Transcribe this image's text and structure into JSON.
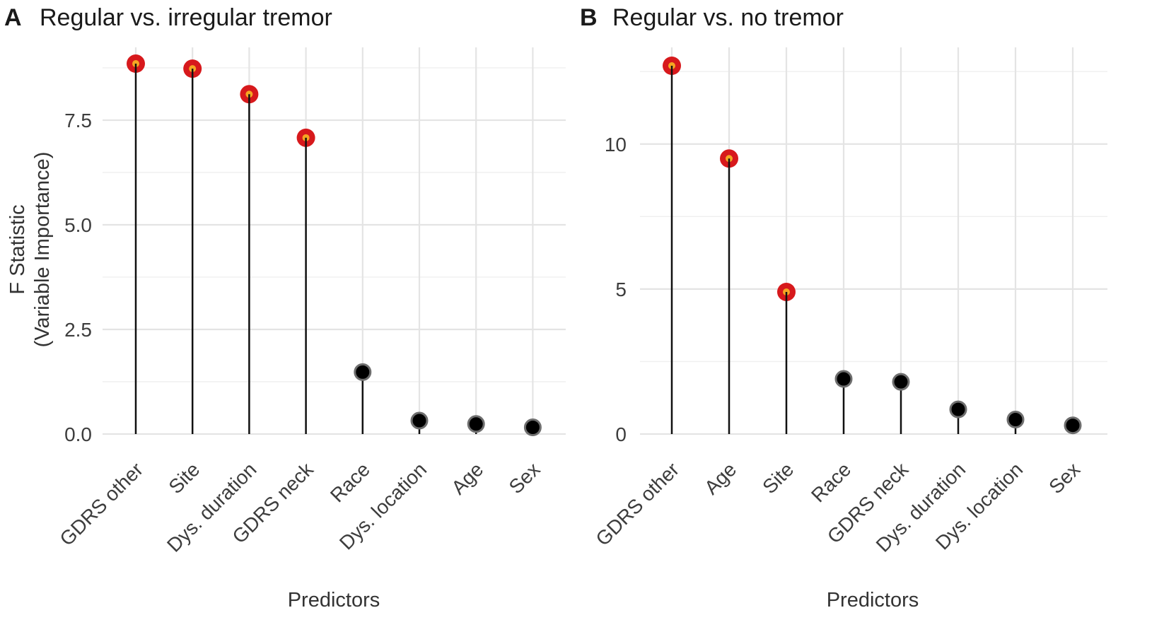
{
  "chart_data": [
    {
      "type": "lollipop",
      "panel_label": "A",
      "title": "Regular vs. irregular tremor",
      "xlabel": "Predictors",
      "ylabel_line1": "F Statistic",
      "ylabel_line2": "(Variable Importance)",
      "ylim": [
        0,
        8.8
      ],
      "yticks": [
        0,
        2.5,
        5,
        7.5
      ],
      "ytick_labels": [
        "0.0",
        "2.5",
        "5.0",
        "7.5"
      ],
      "categories": [
        "GDRS other",
        "Site",
        "Dys. duration",
        "GDRS neck",
        "Race",
        "Dys. location",
        "Age",
        "Sex"
      ],
      "values": [
        8.85,
        8.73,
        8.12,
        7.08,
        1.48,
        0.32,
        0.24,
        0.16
      ],
      "significant": [
        true,
        true,
        true,
        true,
        false,
        false,
        false,
        false
      ]
    },
    {
      "type": "lollipop",
      "panel_label": "B",
      "title": "Regular vs. no tremor",
      "xlabel": "Predictors",
      "ylim": [
        0,
        12.7
      ],
      "yticks": [
        0,
        5,
        10
      ],
      "ytick_labels": [
        "0",
        "5",
        "10"
      ],
      "categories": [
        "GDRS other",
        "Age",
        "Site",
        "Race",
        "GDRS neck",
        "Dys. duration",
        "Dys. location",
        "Sex"
      ],
      "values": [
        12.7,
        9.5,
        4.9,
        1.9,
        1.8,
        0.85,
        0.5,
        0.3
      ],
      "significant": [
        true,
        true,
        true,
        false,
        false,
        false,
        false,
        false
      ]
    }
  ],
  "colors": {
    "significant_outer": "#d7191c",
    "significant_inner": "#f5a623",
    "nonsignificant_fill": "#000000",
    "nonsignificant_ring": "#6e6e6e",
    "stem": "#111111"
  }
}
